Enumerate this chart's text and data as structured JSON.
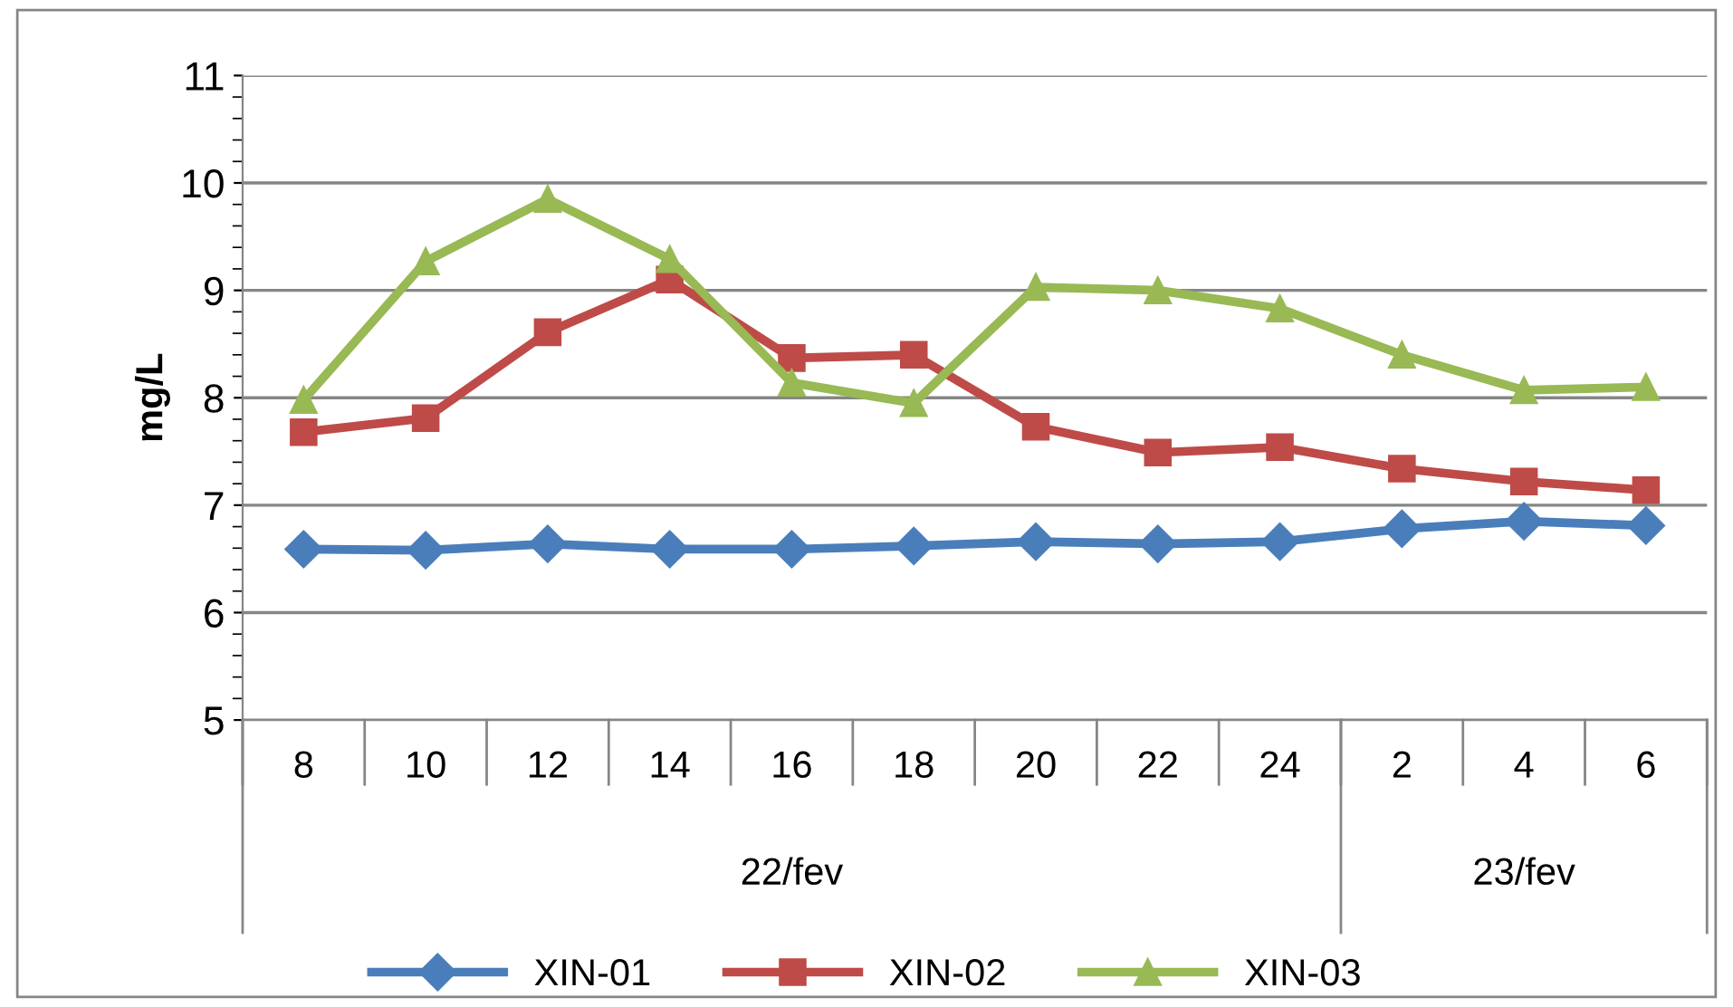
{
  "chart_data": {
    "type": "line",
    "ylabel": "mg/L",
    "categories": [
      "8",
      "10",
      "12",
      "14",
      "16",
      "18",
      "20",
      "22",
      "24",
      "2",
      "4",
      "6"
    ],
    "series": [
      {
        "name": "XIN-01",
        "color": "#4a7ebb",
        "marker": "diamond",
        "values": [
          6.59,
          6.58,
          6.64,
          6.59,
          6.59,
          6.62,
          6.66,
          6.64,
          6.66,
          6.78,
          6.85,
          6.81
        ]
      },
      {
        "name": "XIN-02",
        "color": "#be4b48",
        "marker": "square",
        "values": [
          7.68,
          7.81,
          8.61,
          9.1,
          8.37,
          8.4,
          7.73,
          7.49,
          7.54,
          7.34,
          7.22,
          7.14
        ]
      },
      {
        "name": "XIN-03",
        "color": "#98b954",
        "marker": "triangle",
        "values": [
          7.98,
          9.27,
          9.85,
          9.29,
          8.14,
          7.95,
          9.03,
          9.0,
          8.83,
          8.4,
          8.07,
          8.1
        ]
      }
    ],
    "ylim": [
      5,
      11
    ],
    "yticks": [
      5,
      6,
      7,
      8,
      9,
      10,
      11
    ],
    "grid": "y",
    "legend": "bottom",
    "line_style": "solid",
    "annotations": [
      "22/fev",
      "23/fev"
    ]
  }
}
